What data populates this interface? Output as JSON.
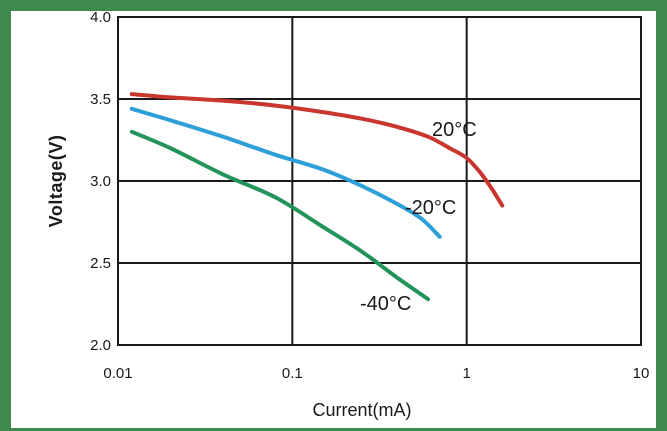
{
  "colors": {
    "frame": "#3e8a4c",
    "grid": "#1a1a1a"
  },
  "chart_data": {
    "type": "line",
    "title": "",
    "xlabel": "Current(mA)",
    "ylabel": "Voltage(V)",
    "xscale": "log",
    "xlim": [
      0.01,
      10
    ],
    "ylim": [
      2.0,
      4.0
    ],
    "xticks": [
      "0.01",
      "0.1",
      "1",
      "10"
    ],
    "yticks": [
      "2.0",
      "2.5",
      "3.0",
      "3.5",
      "4.0"
    ],
    "grid": true,
    "series": [
      {
        "name": "20°C",
        "color": "#c8362e",
        "points": [
          [
            0.012,
            3.53
          ],
          [
            0.02,
            3.51
          ],
          [
            0.04,
            3.49
          ],
          [
            0.08,
            3.46
          ],
          [
            0.15,
            3.42
          ],
          [
            0.25,
            3.38
          ],
          [
            0.4,
            3.33
          ],
          [
            0.6,
            3.27
          ],
          [
            0.8,
            3.2
          ],
          [
            1.0,
            3.14
          ],
          [
            1.2,
            3.05
          ],
          [
            1.4,
            2.95
          ],
          [
            1.6,
            2.85
          ]
        ]
      },
      {
        "name": "-20°C",
        "color": "#2e9fd8",
        "points": [
          [
            0.012,
            3.44
          ],
          [
            0.02,
            3.37
          ],
          [
            0.04,
            3.27
          ],
          [
            0.08,
            3.16
          ],
          [
            0.15,
            3.07
          ],
          [
            0.25,
            2.97
          ],
          [
            0.4,
            2.86
          ],
          [
            0.55,
            2.77
          ],
          [
            0.7,
            2.66
          ]
        ]
      },
      {
        "name": "-40°C",
        "color": "#23935a",
        "points": [
          [
            0.012,
            3.3
          ],
          [
            0.02,
            3.2
          ],
          [
            0.04,
            3.04
          ],
          [
            0.08,
            2.9
          ],
          [
            0.15,
            2.72
          ],
          [
            0.25,
            2.57
          ],
          [
            0.4,
            2.41
          ],
          [
            0.6,
            2.28
          ]
        ]
      }
    ],
    "annotations": [
      "20°C",
      "-20°C",
      "-40°C"
    ]
  }
}
